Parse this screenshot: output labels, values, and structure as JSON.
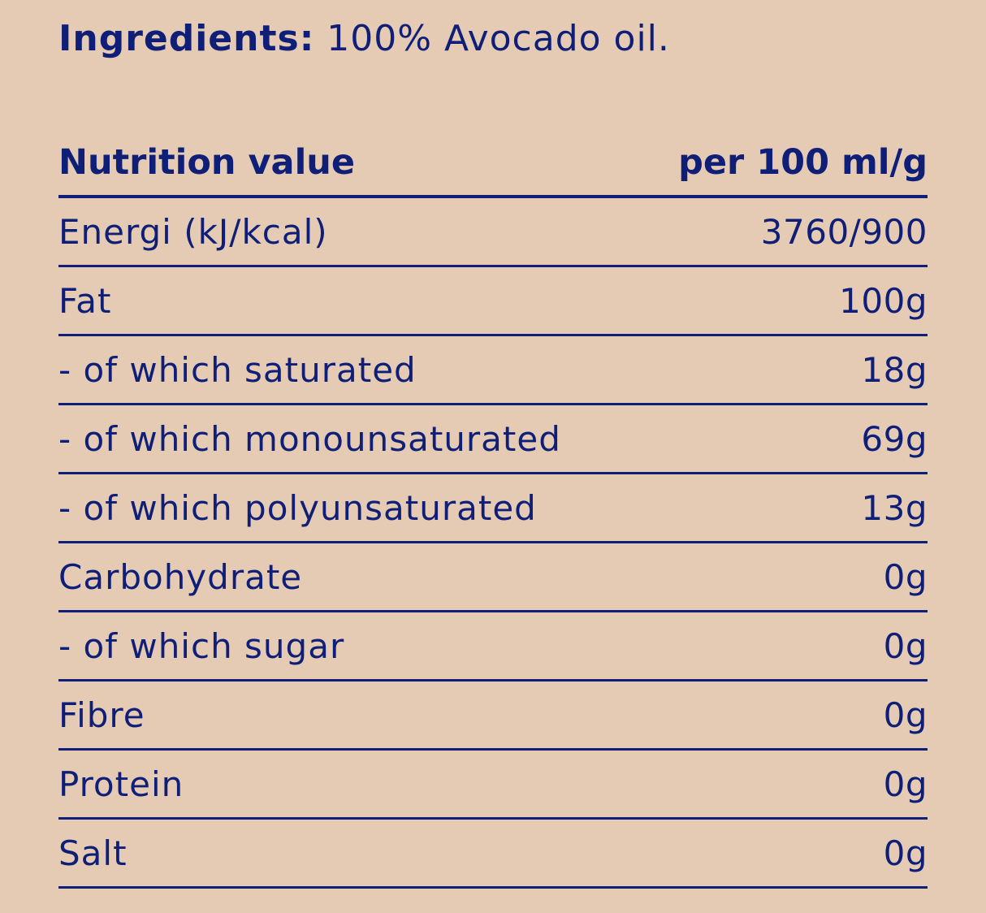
{
  "ingredients": {
    "label": "Ingredients:",
    "text": " 100% Avocado oil."
  },
  "table": {
    "header": {
      "name": "Nutrition value",
      "value": "per 100 ml/g"
    },
    "rows": [
      {
        "name": "Energi (kJ/kcal)",
        "value": "3760/900"
      },
      {
        "name": "Fat",
        "value": "100g"
      },
      {
        "name": "- of which saturated",
        "value": "18g"
      },
      {
        "name": "- of which monounsaturated",
        "value": "69g"
      },
      {
        "name": "- of which polyunsaturated",
        "value": "13g"
      },
      {
        "name": "Carbohydrate",
        "value": "0g"
      },
      {
        "name": "- of which sugar",
        "value": "0g"
      },
      {
        "name": "Fibre",
        "value": "0g"
      },
      {
        "name": "Protein",
        "value": "0g"
      },
      {
        "name": "Salt",
        "value": "0g"
      }
    ]
  },
  "colors": {
    "background": "#e6cbb4",
    "text": "#0f1f78"
  }
}
